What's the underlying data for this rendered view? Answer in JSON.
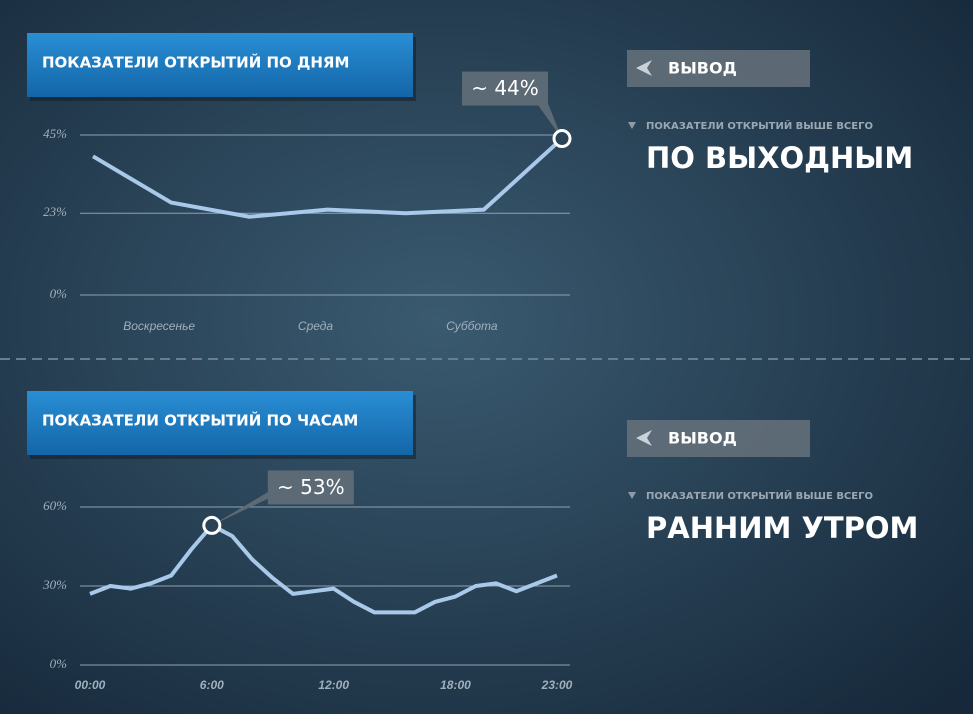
{
  "chart_data": [
    {
      "type": "line",
      "title": "ПОКАЗАТЕЛИ ОТКРЫТИЙ ПО ДНЯМ",
      "categories": [
        null,
        "Воскресенье",
        null,
        "Среда",
        null,
        "Суббота",
        null
      ],
      "series": [
        {
          "color": "#a9c9ea",
          "values": [
            39,
            26,
            22,
            24,
            23,
            24,
            44
          ],
          "value_labels": [
            null,
            null,
            null,
            null,
            null,
            null,
            "~ 44%"
          ]
        }
      ],
      "ylim": [
        0,
        45
      ],
      "yticks": [
        {
          "value": 0,
          "label": "0%"
        },
        {
          "value": 23,
          "label": "23%"
        },
        {
          "value": 45,
          "label": "45%"
        }
      ],
      "grid": true
    },
    {
      "type": "line",
      "title": "ПОКАЗАТЕЛИ ОТКРЫТИЙ ПО ЧАСАМ",
      "categories": [
        "00:00",
        null,
        null,
        null,
        null,
        null,
        "6:00",
        null,
        null,
        null,
        null,
        null,
        "12:00",
        null,
        null,
        null,
        null,
        null,
        "18:00",
        null,
        null,
        null,
        null,
        "23:00"
      ],
      "series": [
        {
          "color": "#a9c9ea",
          "values": [
            27,
            30,
            29,
            31,
            34,
            44,
            53,
            49,
            40,
            33,
            27,
            28,
            29,
            24,
            20,
            20,
            20,
            24,
            26,
            30,
            31,
            28,
            31,
            34
          ],
          "value_labels": [
            null,
            null,
            null,
            null,
            null,
            null,
            "~ 53%",
            null,
            null,
            null,
            null,
            null,
            null,
            null,
            null,
            null,
            null,
            null,
            null,
            null,
            null,
            null,
            null,
            null
          ]
        }
      ],
      "ylim": [
        0,
        60
      ],
      "yticks": [
        {
          "value": 0,
          "label": "0%"
        },
        {
          "value": 30,
          "label": "30%"
        },
        {
          "value": 60,
          "label": "60%"
        }
      ],
      "grid": true
    }
  ],
  "conclusions": [
    {
      "button": "ВЫВОД",
      "subtitle": "ПОКАЗАТЕЛИ ОТКРЫТИЙ ВЫШЕ ВСЕГО",
      "text": "ПО ВЫХОДНЫМ"
    },
    {
      "button": "ВЫВОД",
      "subtitle": "ПОКАЗАТЕЛИ ОТКРЫТИЙ ВЫШЕ ВСЕГО",
      "text": "РАННИМ УТРОМ"
    }
  ]
}
